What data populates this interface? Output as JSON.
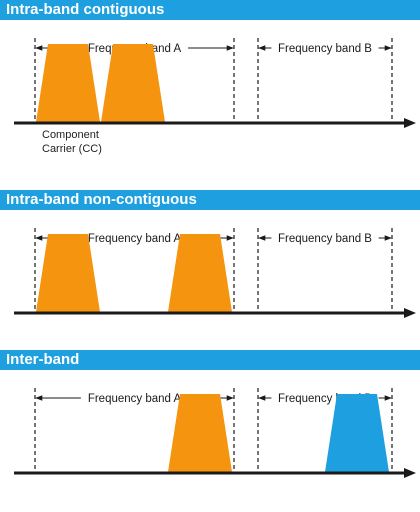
{
  "colors": {
    "banner": "#1ea0e0",
    "carrier_orange": "#f5950f",
    "carrier_blue": "#1ea0e0",
    "axis": "#1a1a1a"
  },
  "band_a_label": "Frequency band A",
  "band_b_label": "Frequency band B",
  "panels": [
    {
      "title": "Intra-band contiguous",
      "carriers": [
        {
          "band": "A",
          "slot": 0,
          "color": "orange"
        },
        {
          "band": "A",
          "slot": 1,
          "color": "orange"
        }
      ],
      "cc_label": [
        "Component",
        "Carrier (CC)"
      ]
    },
    {
      "title": "Intra-band non-contiguous",
      "carriers": [
        {
          "band": "A",
          "slot": 0,
          "color": "orange"
        },
        {
          "band": "A",
          "slot": 2,
          "color": "orange"
        }
      ]
    },
    {
      "title": "Inter-band",
      "carriers": [
        {
          "band": "A",
          "slot": 2,
          "color": "orange"
        },
        {
          "band": "B",
          "slot": 1,
          "color": "blue"
        }
      ]
    }
  ]
}
